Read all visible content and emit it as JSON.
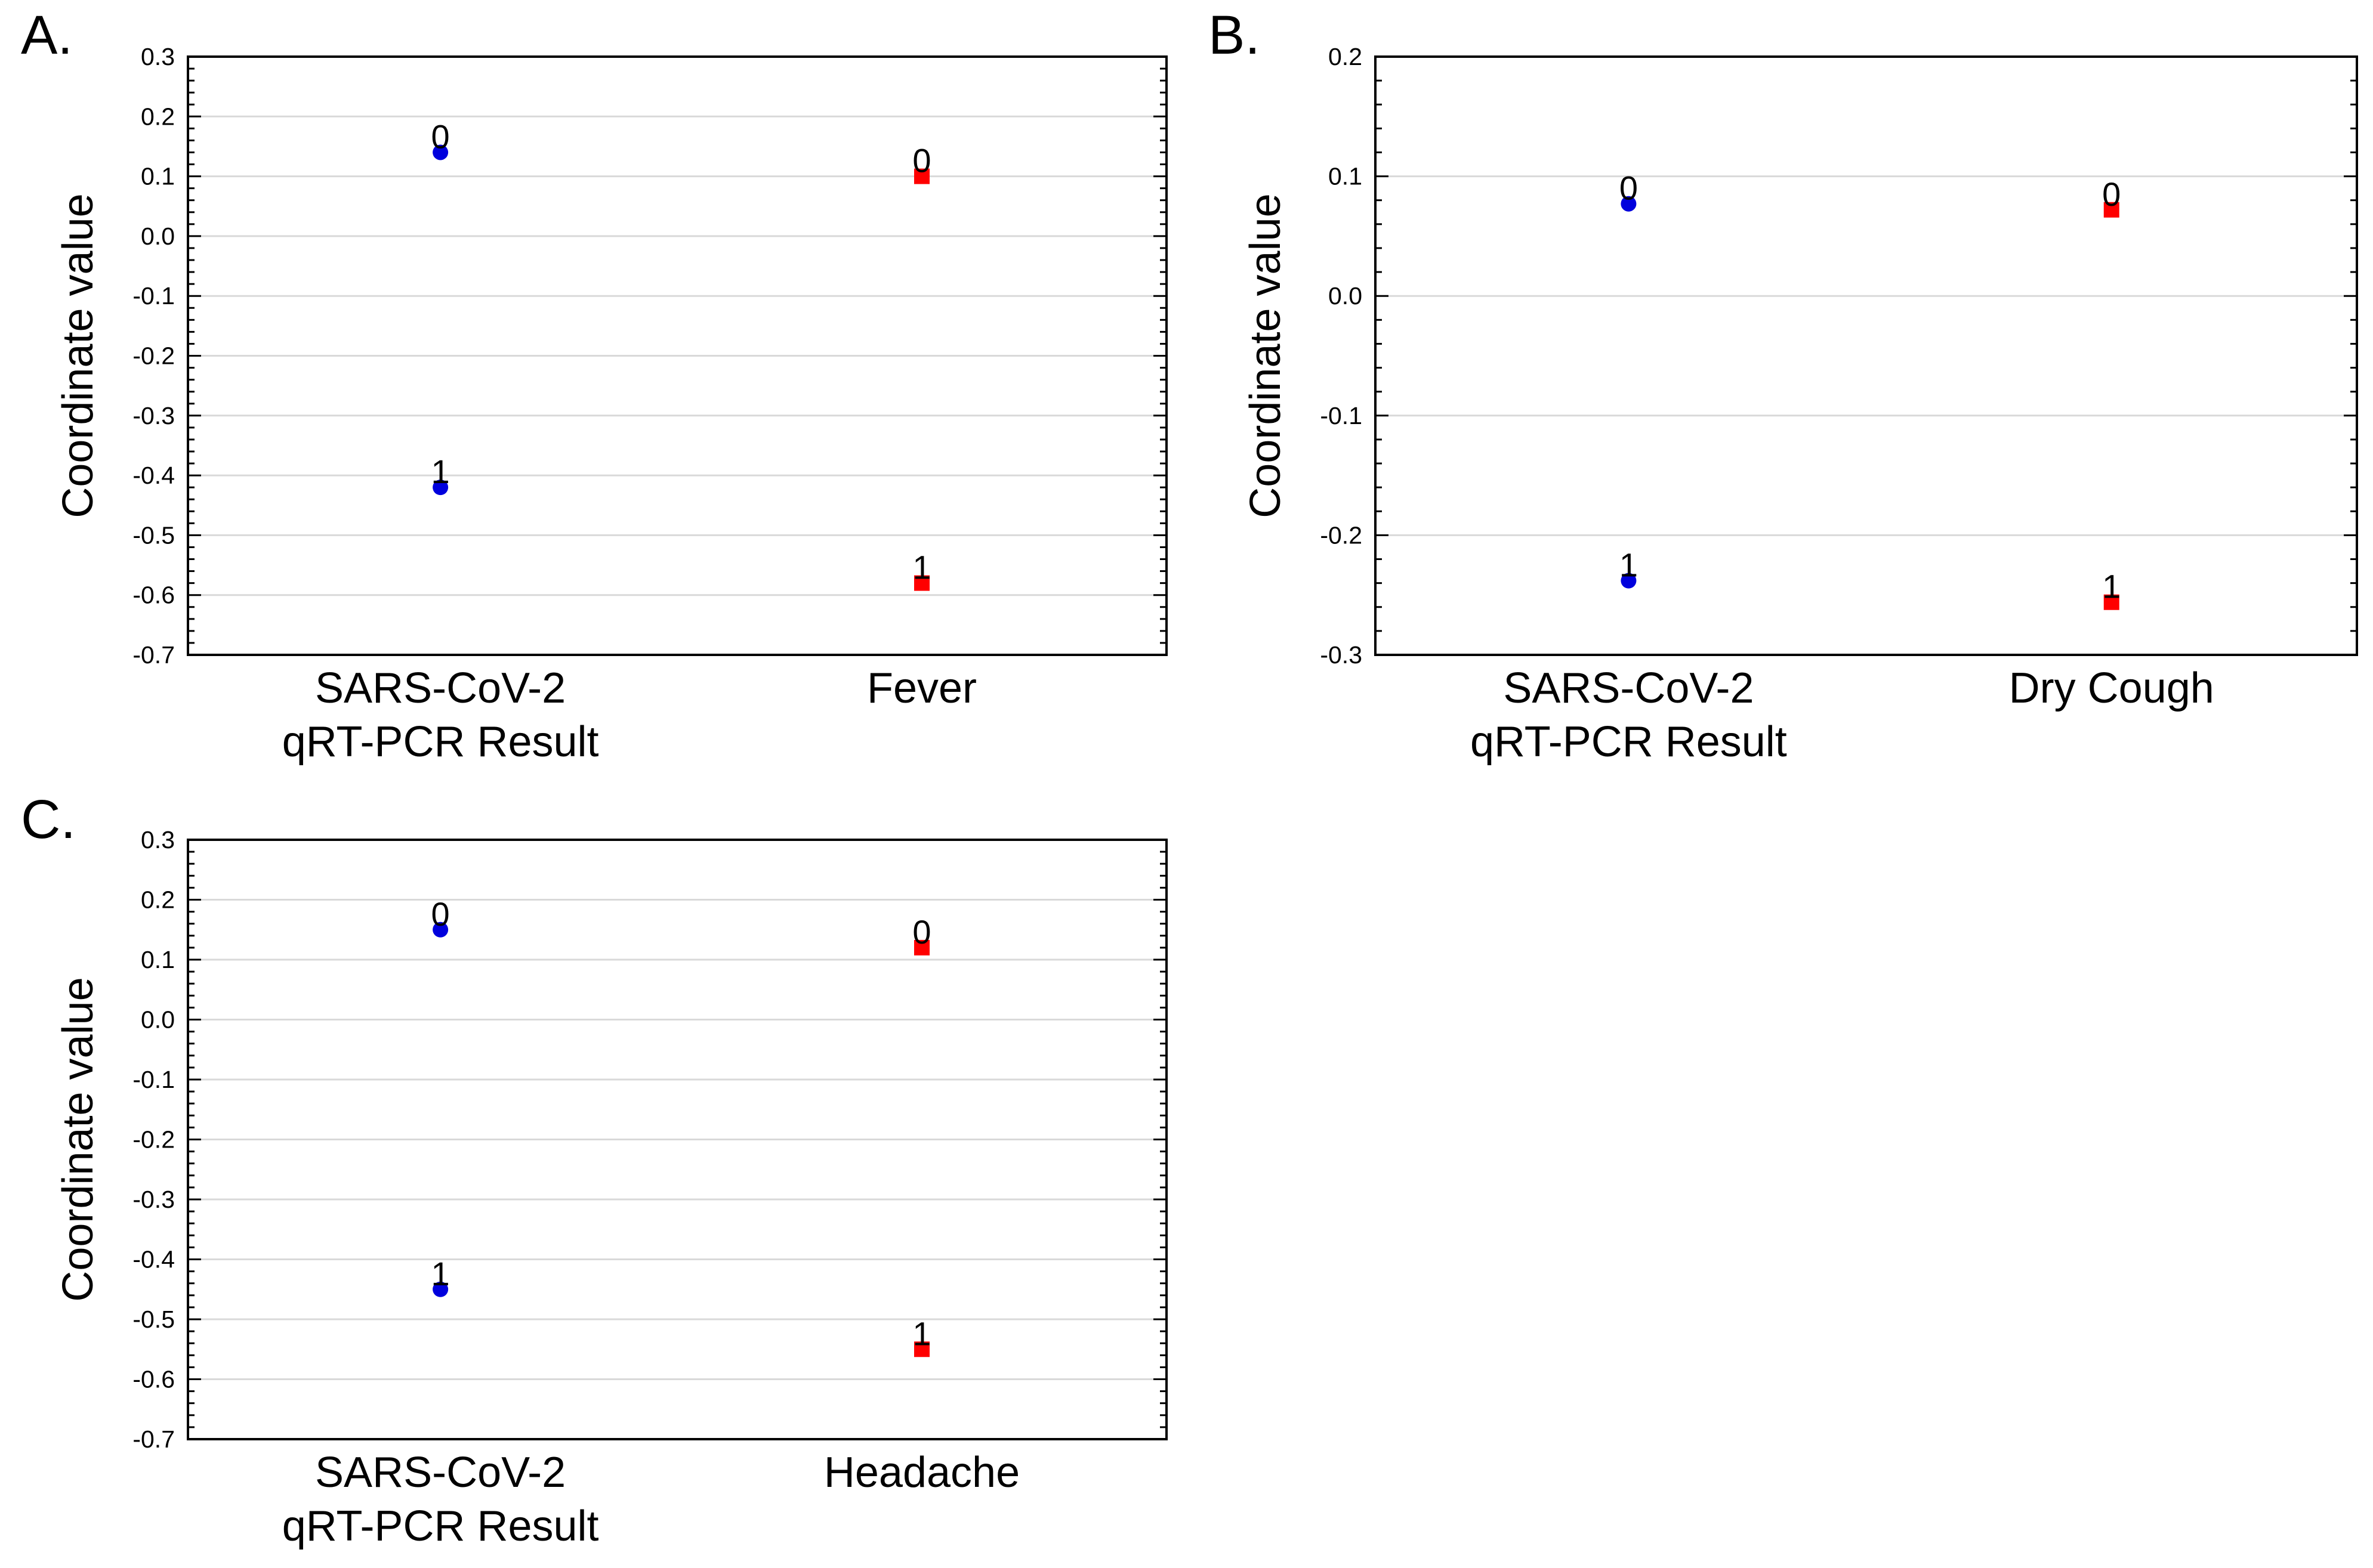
{
  "chart_data": [
    {
      "panel": "A.",
      "type": "scatter",
      "ylabel": "Coordinate value",
      "ylim": [
        -0.7,
        0.3
      ],
      "yticks": [
        "0.3",
        "0.2",
        "0.1",
        "0.0",
        "-0.1",
        "-0.2",
        "-0.3",
        "-0.4",
        "-0.5",
        "-0.6",
        "-0.7"
      ],
      "grid": true,
      "categories": [
        {
          "lines": [
            "SARS-CoV-2",
            "qRT-PCR Result"
          ],
          "marker": "circle",
          "color": "#0000dd",
          "points": [
            {
              "label": "0",
              "y": 0.14
            },
            {
              "label": "1",
              "y": -0.42
            }
          ]
        },
        {
          "lines": [
            "Fever"
          ],
          "marker": "square",
          "color": "#ff0000",
          "points": [
            {
              "label": "0",
              "y": 0.1
            },
            {
              "label": "1",
              "y": -0.58
            }
          ]
        }
      ]
    },
    {
      "panel": "B.",
      "type": "scatter",
      "ylabel": "Coordinate value",
      "ylim": [
        -0.3,
        0.2
      ],
      "yticks": [
        "0.2",
        "0.1",
        "0.0",
        "-0.1",
        "-0.2",
        "-0.3"
      ],
      "grid": true,
      "categories": [
        {
          "lines": [
            "SARS-CoV-2",
            "qRT-PCR Result"
          ],
          "marker": "circle",
          "color": "#0000dd",
          "points": [
            {
              "label": "0",
              "y": 0.077
            },
            {
              "label": "1",
              "y": -0.238
            }
          ]
        },
        {
          "lines": [
            "Dry Cough"
          ],
          "marker": "square",
          "color": "#ff0000",
          "points": [
            {
              "label": "0",
              "y": 0.072
            },
            {
              "label": "1",
              "y": -0.256
            }
          ]
        }
      ]
    },
    {
      "panel": "C.",
      "type": "scatter",
      "ylabel": "Coordinate value",
      "ylim": [
        -0.7,
        0.3
      ],
      "yticks": [
        "0.3",
        "0.2",
        "0.1",
        "0.0",
        "-0.1",
        "-0.2",
        "-0.3",
        "-0.4",
        "-0.5",
        "-0.6",
        "-0.7"
      ],
      "grid": true,
      "categories": [
        {
          "lines": [
            "SARS-CoV-2",
            "qRT-PCR Result"
          ],
          "marker": "circle",
          "color": "#0000dd",
          "points": [
            {
              "label": "0",
              "y": 0.15
            },
            {
              "label": "1",
              "y": -0.45
            }
          ]
        },
        {
          "lines": [
            "Headache"
          ],
          "marker": "square",
          "color": "#ff0000",
          "points": [
            {
              "label": "0",
              "y": 0.12
            },
            {
              "label": "1",
              "y": -0.55
            }
          ]
        }
      ]
    }
  ]
}
